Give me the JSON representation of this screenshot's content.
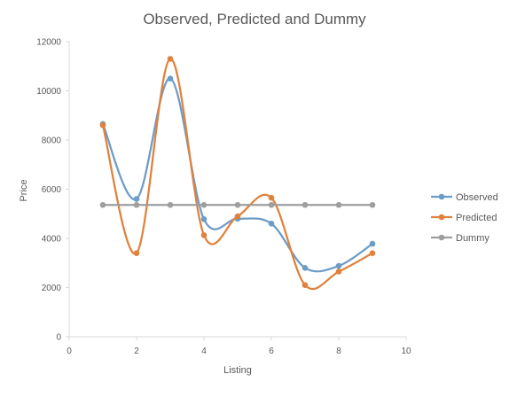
{
  "chart_data": {
    "type": "line",
    "title": "Observed, Predicted and Dummy",
    "xlabel": "Listing",
    "ylabel": "Price",
    "xlim": [
      0,
      10
    ],
    "ylim": [
      0,
      12000
    ],
    "x_ticks": [
      0,
      2,
      4,
      6,
      8,
      10
    ],
    "y_ticks": [
      0,
      2000,
      4000,
      6000,
      8000,
      10000,
      12000
    ],
    "x_tick_labels": [
      "0",
      "2",
      "4",
      "6",
      "8",
      "10"
    ],
    "y_tick_labels": [
      "0",
      "2000",
      "4000",
      "6000",
      "8000",
      "10000",
      "12000"
    ],
    "grid": false,
    "smoothed": true,
    "legend_position": "right",
    "x": [
      1,
      2,
      3,
      4,
      5,
      6,
      7,
      8,
      9
    ],
    "series": [
      {
        "name": "Observed",
        "color": "#6c9cc7",
        "values": [
          8650,
          5600,
          10500,
          4780,
          4800,
          4600,
          2800,
          2880,
          3780
        ]
      },
      {
        "name": "Predicted",
        "color": "#e0813c",
        "values": [
          8600,
          3400,
          11300,
          4130,
          4900,
          5650,
          2100,
          2650,
          3400
        ]
      },
      {
        "name": "Dummy",
        "color": "#9e9e9e",
        "values": [
          5360,
          5360,
          5360,
          5360,
          5360,
          5360,
          5360,
          5360,
          5360
        ]
      }
    ]
  }
}
